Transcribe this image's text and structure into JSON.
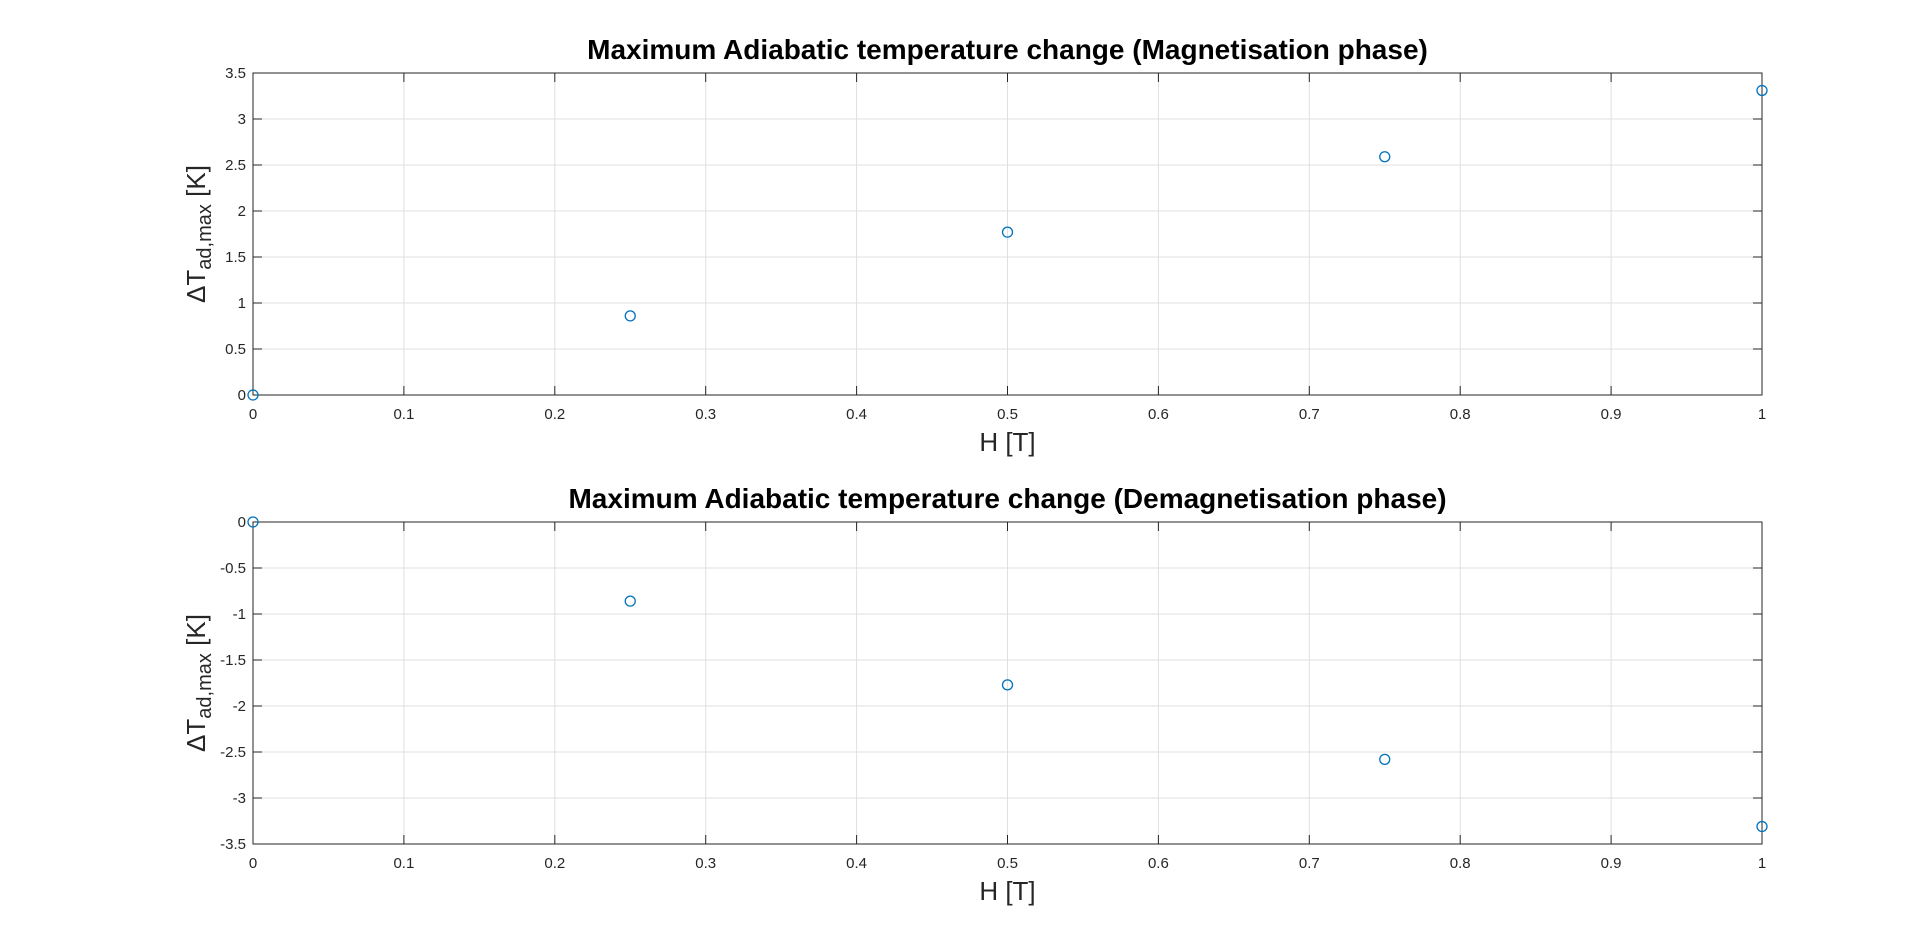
{
  "chart_data": [
    {
      "type": "scatter",
      "title": "Maximum Adiabatic temperature change (Magnetisation phase)",
      "xlabel": "H [T]",
      "ylabel": {
        "main": "ΔT",
        "subscript": "ad,max",
        "unit": " [K]"
      },
      "xlim": [
        0,
        1
      ],
      "ylim": [
        0,
        3.5
      ],
      "xticks": [
        "0",
        "0.1",
        "0.2",
        "0.3",
        "0.4",
        "0.5",
        "0.6",
        "0.7",
        "0.8",
        "0.9",
        "1"
      ],
      "yticks": [
        "0",
        "0.5",
        "1",
        "1.5",
        "2",
        "2.5",
        "3",
        "3.5"
      ],
      "grid": true,
      "marker": "circle-open",
      "color": "#0072BD",
      "points": [
        {
          "x": 0,
          "y": 0
        },
        {
          "x": 0.25,
          "y": 0.86
        },
        {
          "x": 0.5,
          "y": 1.77
        },
        {
          "x": 0.75,
          "y": 2.59
        },
        {
          "x": 1,
          "y": 3.31
        }
      ]
    },
    {
      "type": "scatter",
      "title": "Maximum Adiabatic temperature change (Demagnetisation phase)",
      "xlabel": "H [T]",
      "ylabel": {
        "main": "ΔT",
        "subscript": "ad,max",
        "unit": " [K]"
      },
      "xlim": [
        0,
        1
      ],
      "ylim": [
        -3.5,
        0
      ],
      "xticks": [
        "0",
        "0.1",
        "0.2",
        "0.3",
        "0.4",
        "0.5",
        "0.6",
        "0.7",
        "0.8",
        "0.9",
        "1"
      ],
      "yticks": [
        "0",
        "-0.5",
        "-1",
        "-1.5",
        "-2",
        "-2.5",
        "-3",
        "-3.5"
      ],
      "grid": true,
      "marker": "circle-open",
      "color": "#0072BD",
      "points": [
        {
          "x": 0,
          "y": 0
        },
        {
          "x": 0.25,
          "y": -0.86
        },
        {
          "x": 0.5,
          "y": -1.77
        },
        {
          "x": 0.75,
          "y": -2.58
        },
        {
          "x": 1,
          "y": -3.31
        }
      ]
    }
  ]
}
